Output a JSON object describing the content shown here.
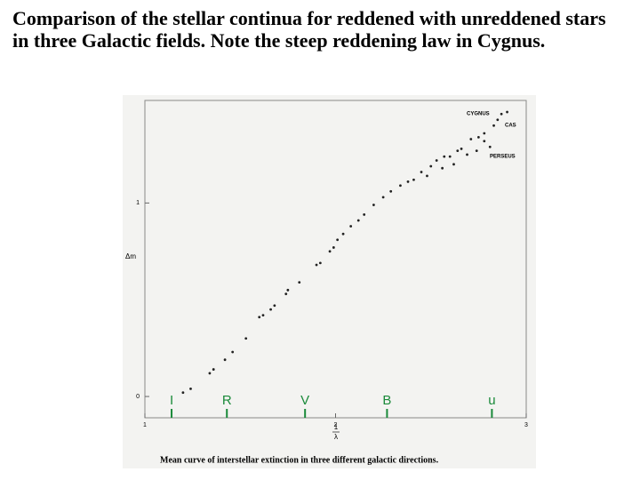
{
  "slide_title": "Comparison of the stellar continua for reddened with unreddened stars in three Galactic fields. Note the steep reddening law in Cygnus.",
  "chart_data": {
    "type": "scatter",
    "caption": "Mean curve of interstellar extinction in three different galactic directions.",
    "y_label": "Δm",
    "x_label": {
      "numerator": "1",
      "denominator": "λ"
    },
    "xlim": [
      1,
      3
    ],
    "ylim": [
      -0.11,
      1.53
    ],
    "xticks": [
      1,
      2,
      3
    ],
    "yticks": [
      0,
      1
    ],
    "color": "#222222",
    "series_labels": [
      "CYGNUS",
      "CAS",
      "PERSEUS"
    ],
    "band_color": "#1a8a3a",
    "bands": [
      {
        "label": "I",
        "x": 1.14
      },
      {
        "label": "R",
        "x": 1.43
      },
      {
        "label": "V",
        "x": 1.84
      },
      {
        "label": "B",
        "x": 2.27
      },
      {
        "label": "u",
        "x": 2.82
      }
    ],
    "x": [
      1.2,
      1.24,
      1.34,
      1.36,
      1.42,
      1.46,
      1.53,
      1.6,
      1.62,
      1.66,
      1.68,
      1.74,
      1.75,
      1.81,
      1.9,
      1.92,
      1.97,
      1.99,
      2.01,
      2.04,
      2.08,
      2.12,
      2.15,
      2.2,
      2.25,
      2.29,
      2.34,
      2.38,
      2.41,
      2.45,
      2.5,
      2.53,
      2.57,
      2.6,
      2.64,
      2.66,
      2.71,
      2.75,
      2.78,
      2.83,
      2.85,
      2.87,
      2.9,
      2.81,
      2.78,
      2.74,
      2.69,
      2.62,
      2.56,
      2.48
    ],
    "values": [
      0.02,
      0.04,
      0.12,
      0.14,
      0.19,
      0.23,
      0.3,
      0.41,
      0.42,
      0.45,
      0.47,
      0.53,
      0.55,
      0.59,
      0.68,
      0.69,
      0.75,
      0.77,
      0.81,
      0.84,
      0.88,
      0.91,
      0.94,
      0.99,
      1.03,
      1.06,
      1.09,
      1.11,
      1.12,
      1.16,
      1.19,
      1.22,
      1.24,
      1.24,
      1.27,
      1.28,
      1.33,
      1.34,
      1.36,
      1.4,
      1.43,
      1.46,
      1.47,
      1.29,
      1.32,
      1.27,
      1.25,
      1.2,
      1.18,
      1.14
    ]
  }
}
